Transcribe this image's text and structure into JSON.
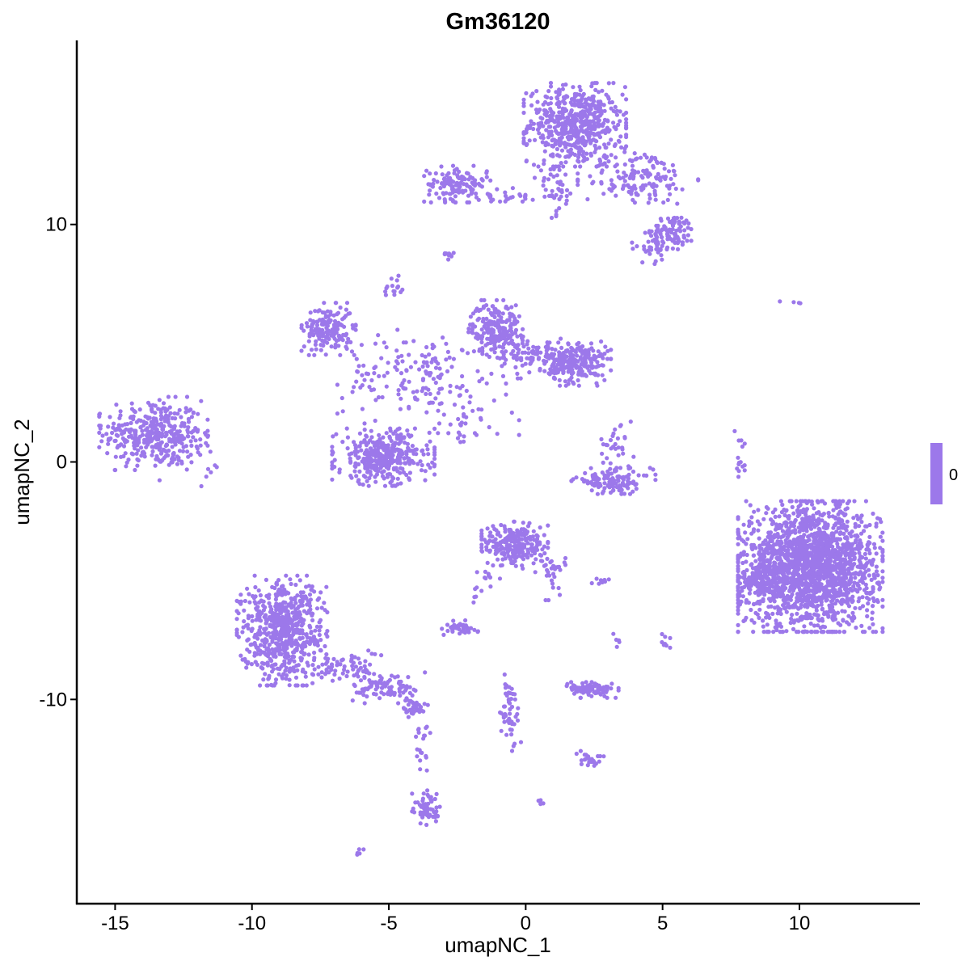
{
  "chart_data": {
    "type": "scatter",
    "title": "Gm36120",
    "xlabel": "umapNC_1",
    "ylabel": "umapNC_2",
    "xlim": [
      -16.4,
      14.4
    ],
    "ylim": [
      -18.6,
      17.75
    ],
    "xticks": [
      -15,
      -10,
      -5,
      0,
      5,
      10
    ],
    "yticks": [
      -10,
      0,
      10
    ],
    "xtick_labels": [
      "-15",
      "-10",
      "-5",
      "0",
      "5",
      "10"
    ],
    "ytick_labels": [
      "-10",
      "0",
      "10"
    ],
    "grid": false,
    "point_color": "#9C78EA",
    "legend": {
      "placement": "right",
      "type": "colorbar",
      "labels": [
        "0"
      ],
      "color": "#9C78EA"
    },
    "clusters": [
      {
        "cx": -13.6,
        "cy": 1.2,
        "sx": 0.9,
        "sy": 0.7,
        "n": 350
      },
      {
        "cx": -12.4,
        "cy": 0.3,
        "sx": 0.6,
        "sy": 0.6,
        "n": 40
      },
      {
        "cx": 1.8,
        "cy": 14.2,
        "sx": 0.85,
        "sy": 0.8,
        "n": 550
      },
      {
        "cx": 4.1,
        "cy": 12.0,
        "sx": 1.0,
        "sy": 0.6,
        "n": 150
      },
      {
        "cx": 5.4,
        "cy": 9.7,
        "sx": 0.4,
        "sy": 0.35,
        "n": 90
      },
      {
        "cx": 4.6,
        "cy": 9.0,
        "sx": 0.4,
        "sy": 0.3,
        "n": 30
      },
      {
        "cx": -2.5,
        "cy": 11.7,
        "sx": 0.55,
        "sy": 0.35,
        "n": 120
      },
      {
        "cx": -0.7,
        "cy": 11.2,
        "sx": 1.0,
        "sy": 0.15,
        "n": 40
      },
      {
        "cx": 1.1,
        "cy": 11.6,
        "sx": 0.35,
        "sy": 0.6,
        "n": 40
      },
      {
        "cx": -2.9,
        "cy": 8.7,
        "sx": 0.15,
        "sy": 0.15,
        "n": 10
      },
      {
        "cx": -4.8,
        "cy": 7.3,
        "sx": 0.2,
        "sy": 0.3,
        "n": 15
      },
      {
        "cx": -7.2,
        "cy": 5.6,
        "sx": 0.45,
        "sy": 0.5,
        "n": 170
      },
      {
        "cx": -1.1,
        "cy": 5.6,
        "sx": 0.45,
        "sy": 0.55,
        "n": 220
      },
      {
        "cx": 1.9,
        "cy": 4.2,
        "sx": 0.55,
        "sy": 0.45,
        "n": 220
      },
      {
        "cx": 0.3,
        "cy": 4.4,
        "sx": 0.9,
        "sy": 0.4,
        "n": 90
      },
      {
        "cx": -3.8,
        "cy": 3.6,
        "sx": 1.4,
        "sy": 0.9,
        "n": 170
      },
      {
        "cx": -5.2,
        "cy": 0.2,
        "sx": 0.85,
        "sy": 0.55,
        "n": 380
      },
      {
        "cx": -2.0,
        "cy": 1.5,
        "sx": 0.8,
        "sy": 0.5,
        "n": 25
      },
      {
        "cx": 3.2,
        "cy": -0.8,
        "sx": 0.7,
        "sy": 0.25,
        "n": 120
      },
      {
        "cx": 3.2,
        "cy": 0.6,
        "sx": 0.35,
        "sy": 0.5,
        "n": 30
      },
      {
        "cx": 10.4,
        "cy": -4.4,
        "sx": 1.2,
        "sy": 1.25,
        "n": 1900
      },
      {
        "cx": 8.6,
        "cy": -5.0,
        "sx": 0.35,
        "sy": 0.5,
        "n": 120
      },
      {
        "cx": 7.9,
        "cy": 0.0,
        "sx": 0.12,
        "sy": 0.6,
        "n": 15
      },
      {
        "cx": 9.7,
        "cy": 6.7,
        "sx": 0.2,
        "sy": 0.05,
        "n": 4
      },
      {
        "cx": -0.4,
        "cy": -3.5,
        "sx": 0.55,
        "sy": 0.45,
        "n": 260
      },
      {
        "cx": 0.9,
        "cy": -4.5,
        "sx": 0.25,
        "sy": 0.6,
        "n": 30
      },
      {
        "cx": -1.6,
        "cy": -5.2,
        "sx": 0.3,
        "sy": 0.4,
        "n": 15
      },
      {
        "cx": -8.9,
        "cy": -7.1,
        "sx": 0.75,
        "sy": 1.05,
        "n": 650
      },
      {
        "cx": -6.6,
        "cy": -8.6,
        "sx": 0.6,
        "sy": 0.3,
        "n": 60
      },
      {
        "cx": -5.0,
        "cy": -9.5,
        "sx": 0.6,
        "sy": 0.3,
        "n": 90
      },
      {
        "cx": -4.1,
        "cy": -10.3,
        "sx": 0.25,
        "sy": 0.2,
        "n": 40
      },
      {
        "cx": -3.8,
        "cy": -12.0,
        "sx": 0.2,
        "sy": 0.6,
        "n": 20
      },
      {
        "cx": -3.6,
        "cy": -14.6,
        "sx": 0.25,
        "sy": 0.35,
        "n": 60
      },
      {
        "cx": -6.1,
        "cy": -16.4,
        "sx": 0.08,
        "sy": 0.08,
        "n": 5
      },
      {
        "cx": 2.4,
        "cy": -9.6,
        "sx": 0.45,
        "sy": 0.15,
        "n": 90
      },
      {
        "cx": -2.4,
        "cy": -7.0,
        "sx": 0.3,
        "sy": 0.15,
        "n": 40
      },
      {
        "cx": -0.6,
        "cy": -10.6,
        "sx": 0.2,
        "sy": 0.75,
        "n": 50
      },
      {
        "cx": 2.3,
        "cy": -12.5,
        "sx": 0.25,
        "sy": 0.15,
        "n": 25
      },
      {
        "cx": 0.6,
        "cy": -14.3,
        "sx": 0.06,
        "sy": 0.06,
        "n": 4
      },
      {
        "cx": 5.1,
        "cy": -7.4,
        "sx": 0.08,
        "sy": 0.2,
        "n": 8
      },
      {
        "cx": 3.4,
        "cy": -7.5,
        "sx": 0.1,
        "sy": 0.2,
        "n": 5
      },
      {
        "cx": 2.8,
        "cy": -5.0,
        "sx": 0.2,
        "sy": 0.08,
        "n": 8
      }
    ]
  }
}
